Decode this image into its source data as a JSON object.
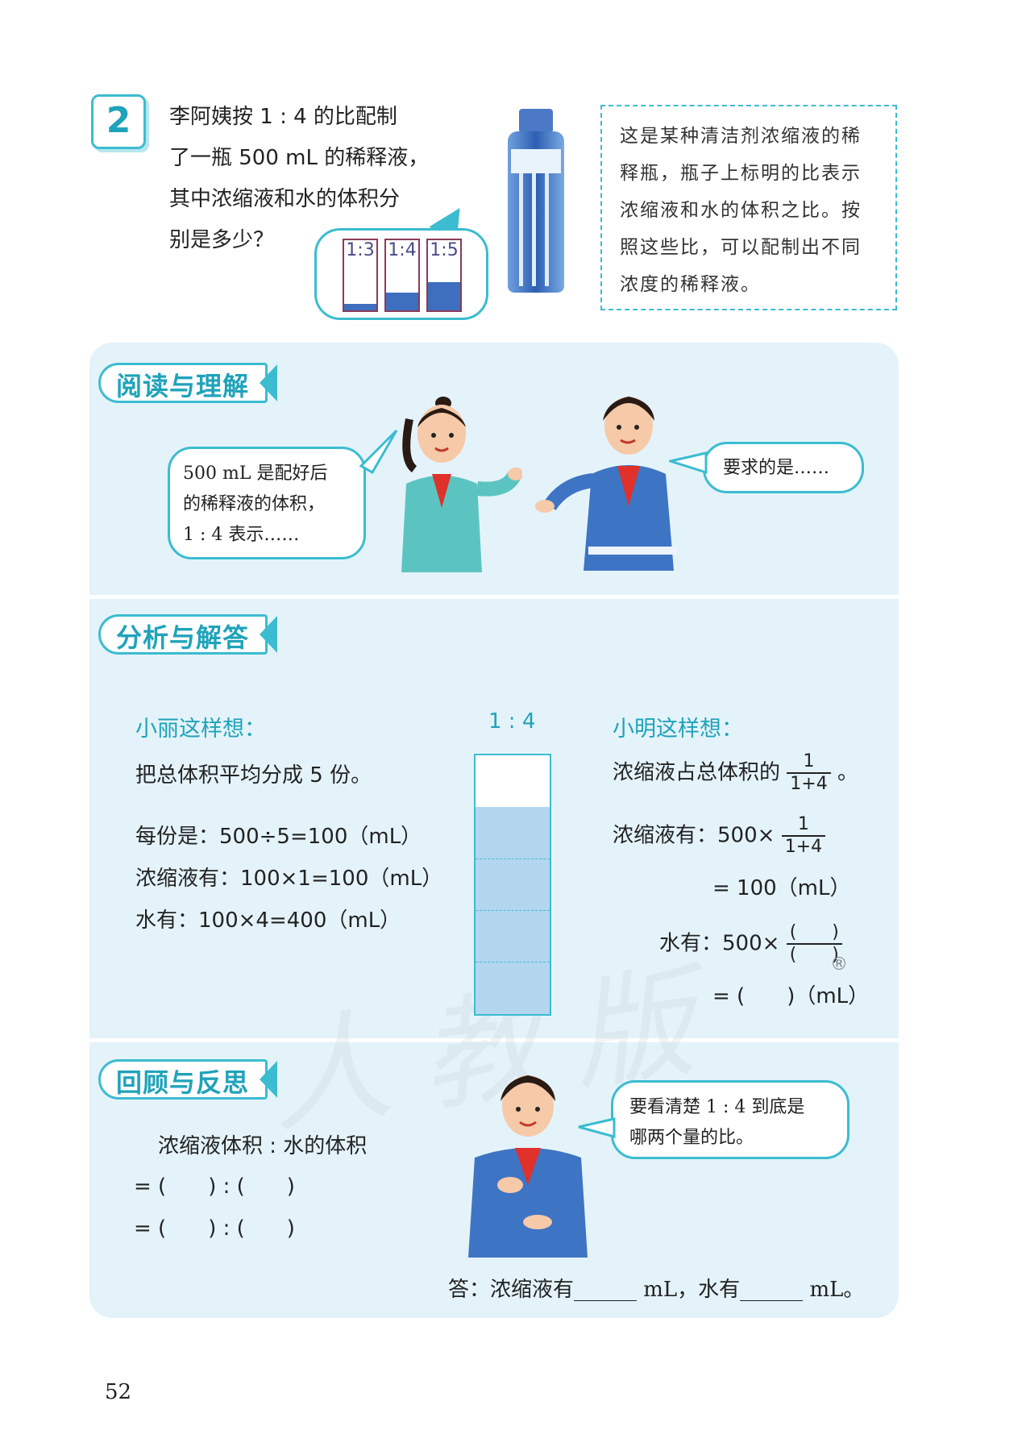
{
  "problem": {
    "number": "2",
    "lines": [
      "李阿姨按 1 : 4 的比配制",
      "了一瓶 500 mL 的稀释液，",
      "其中浓缩液和水的体积分",
      "别是多少？"
    ]
  },
  "ratio_labels": [
    {
      "label": "1:3",
      "level": 0.1
    },
    {
      "label": "1:4",
      "level": 0.25
    },
    {
      "label": "1:5",
      "level": 0.4
    }
  ],
  "note": [
    "这是某种清洁剂浓缩液的稀",
    "释瓶，瓶子上标明的比表示",
    "浓缩液和水的体积之比。按",
    "照这些比，可以配制出不同",
    "浓度的稀释液。"
  ],
  "sections": {
    "read": "阅读与理解",
    "analyze": "分析与解答",
    "review": "回顾与反思"
  },
  "read_section": {
    "girl_bubble": [
      "500 mL 是配好后",
      "的稀释液的体积，",
      "1 : 4 表示……"
    ],
    "boy_bubble": "要求的是……"
  },
  "analyze_section": {
    "xiaoli_title": "小丽这样想：",
    "xiaoli_lines": [
      "把总体积平均分成 5 份。",
      "每份是：500÷5=100（mL）",
      "浓缩液有：100×1=100（mL）",
      "水有：100×4=400（mL）"
    ],
    "column_label": "1 : 4",
    "xiaoming_title": "小明这样想：",
    "xiaoming_line1_prefix": "浓缩液占总体积的",
    "xiaoming_line1_suffix": "。",
    "frac_num": "1",
    "frac_den": "1+4",
    "xiaoming_line2_prefix": "浓缩液有：500×",
    "xiaoming_line3": "= 100（mL）",
    "xiaoming_line4_prefix": "水有：500×",
    "blank_num": "(　　)",
    "blank_den": "(　　)",
    "xiaoming_line5": "= (　　)（mL）",
    "registered": "®"
  },
  "review_section": {
    "expr_title": "浓缩液体积 : 水的体积",
    "expr_line1": "= (　　) : (　　)",
    "expr_line2": "= (　　) : (　　)",
    "boy_bubble": [
      "要看清楚 1 : 4 到底是",
      "哪两个量的比。"
    ],
    "answer": "答：浓缩液有______ mL，水有______ mL。"
  },
  "watermark": "人教版",
  "page_number": "52"
}
